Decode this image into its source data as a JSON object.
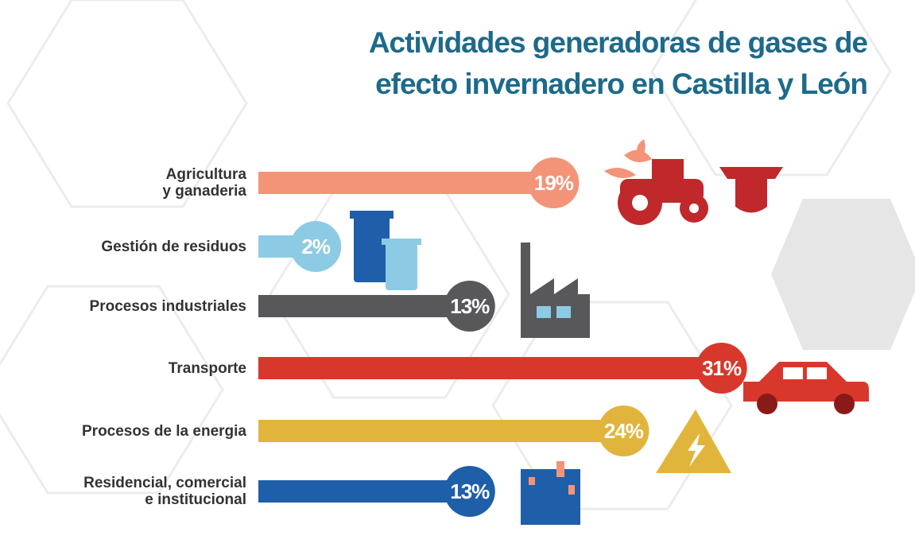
{
  "chart_data": {
    "type": "bar",
    "title": "Actividades generadoras de gases de efecto invernadero en Castilla y León",
    "categories": [
      "Agricultura\ny ganaderia",
      "Gestión de residuos",
      "Procesos industriales",
      "Transporte",
      "Procesos de la energia",
      "Residencial, comercial\ne institucional"
    ],
    "values": [
      19,
      2,
      13,
      31,
      24,
      13
    ],
    "value_labels": [
      "19%",
      "2%",
      "13%",
      "31%",
      "24%",
      "13%"
    ],
    "colors": [
      "#f39479",
      "#8ccbe3",
      "#58585b",
      "#d8382c",
      "#e1b53c",
      "#1f5ea8"
    ]
  }
}
